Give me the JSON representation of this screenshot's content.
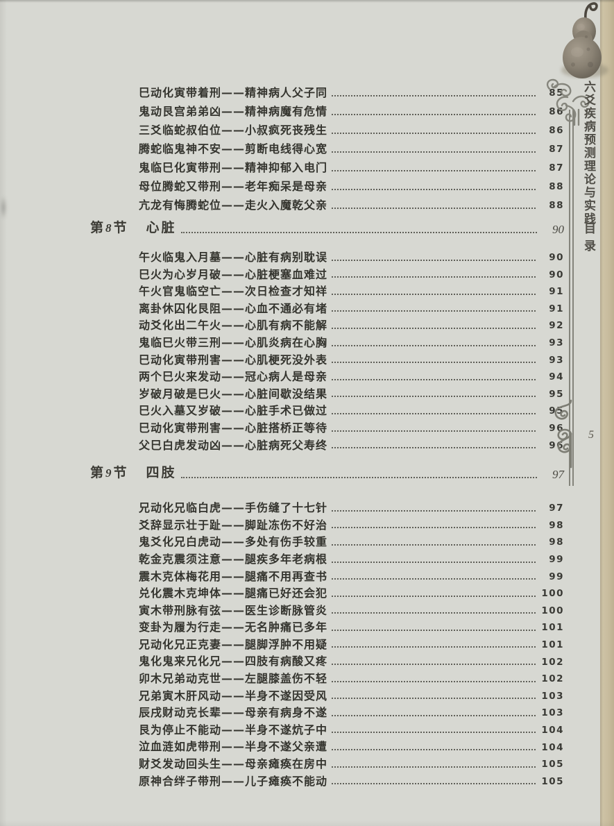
{
  "page": {
    "number": "5"
  },
  "sidebar": {
    "title": "六爻疾病预测理论与实践",
    "subtitle": "目录"
  },
  "decor": {
    "gourd_image": "bottle-gourd-photo",
    "top_ornament": "cloud-scroll",
    "mid_ornament": "double-spiral",
    "colors": {
      "paper": "#d7d8d2",
      "page_edge": "#c8bc9e",
      "ink": "#34342e",
      "ornament": "#84847b"
    }
  },
  "toc": {
    "groups": [
      {
        "entries": [
          {
            "text": "巳动化寅带着刑——精神病人父子同",
            "page": "85"
          },
          {
            "text": "鬼动艮宫弟弟凶——精神病魔有危情",
            "page": "86"
          },
          {
            "text": "三爻临蛇叔伯位——小叔疯死丧残生",
            "page": "86"
          },
          {
            "text": "腾蛇临鬼神不安——剪断电线得心宽",
            "page": "87"
          },
          {
            "text": "鬼临巳化寅带刑——精神抑郁入电门",
            "page": "87"
          },
          {
            "text": "母位腾蛇又带刑——老年痴呆是母亲",
            "page": "88"
          },
          {
            "text": "亢龙有悔腾蛇位——走火入魔乾父亲",
            "page": "88"
          }
        ]
      },
      {
        "section": {
          "prefix": "第",
          "number": "8",
          "suffix": "节",
          "title": "心脏",
          "page": "90"
        },
        "entries": [
          {
            "text": "午火临鬼入月墓——心脏有病别耽误",
            "page": "90"
          },
          {
            "text": "巳火为心岁月破——心脏梗塞血难过",
            "page": "90"
          },
          {
            "text": "午火官鬼临空亡——次日检查才知祥",
            "page": "91"
          },
          {
            "text": "离卦休囚化艮阻——心血不通必有堵",
            "page": "91"
          },
          {
            "text": "动爻化出二午火——心肌有病不能解",
            "page": "92"
          },
          {
            "text": "鬼临巳火带三刑——心肌炎病在心胸",
            "page": "93"
          },
          {
            "text": "巳动化寅带刑害——心肌梗死没外表",
            "page": "93"
          },
          {
            "text": "两个巳火来发动——冠心病人是母亲",
            "page": "94"
          },
          {
            "text": "岁破月破是巳火——心脏间歇没结果",
            "page": "95"
          },
          {
            "text": "巳火入墓又岁破——心脏手术已做过",
            "page": "95"
          },
          {
            "text": "巳动化寅带刑害——心脏搭桥正等待",
            "page": "96"
          },
          {
            "text": "父巳白虎发动凶——心脏病死父寿终",
            "page": "96"
          }
        ]
      },
      {
        "section": {
          "prefix": "第",
          "number": "9",
          "suffix": "节",
          "title": "四肢",
          "page": "97"
        },
        "entries": [
          {
            "text": "兄动化兄临白虎——手伤缝了十七针",
            "page": "97"
          },
          {
            "text": "爻辞显示壮于趾——脚趾冻伤不好治",
            "page": "98"
          },
          {
            "text": "鬼爻化兄白虎动——多处有伤手较重",
            "page": "98"
          },
          {
            "text": "乾金克震须注意——腿疾多年老病根",
            "page": "99"
          },
          {
            "text": "震木克体梅花用——腿痛不用再查书",
            "page": "99"
          },
          {
            "text": "兑化震木克坤体——腿痛已好还会犯",
            "page": "100"
          },
          {
            "text": "寅木带刑脉有弦——医生诊断脉管炎",
            "page": "100"
          },
          {
            "text": "变卦为履为行走——无名肿痛已多年",
            "page": "101"
          },
          {
            "text": "兄动化兄正克妻——腿脚浮肿不用疑",
            "page": "101"
          },
          {
            "text": "鬼化鬼来兄化兄——四肢有病酸又疼",
            "page": "102"
          },
          {
            "text": "卯木兄弟动克世——左腿膝盖伤不轻",
            "page": "102"
          },
          {
            "text": "兄弟寅木肝风动——半身不遂因受风",
            "page": "103"
          },
          {
            "text": "辰戌财动克长辈——母亲有病身不遂",
            "page": "103"
          },
          {
            "text": "艮为停止不能动——半身不遂炕子中",
            "page": "104"
          },
          {
            "text": "泣血涟如虎带刑——半身不遂父亲遭",
            "page": "104"
          },
          {
            "text": "财爻发动回头生——母亲瘫痪在房中",
            "page": "105"
          },
          {
            "text": "原神合绊子带刑——儿子瘫痪不能动",
            "page": "105"
          }
        ]
      }
    ]
  }
}
